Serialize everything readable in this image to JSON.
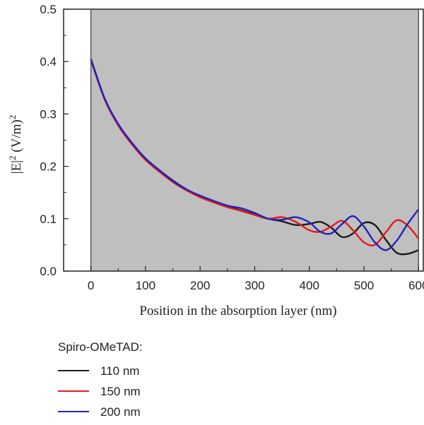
{
  "chart_data": {
    "type": "line",
    "ylabel_parts": {
      "base": "|E|",
      "sup1": "2",
      "unit": " (V/m)",
      "sup2": "2"
    },
    "xlabel": "Position in the absorption layer (nm)",
    "xlim": [
      -50,
      610
    ],
    "ylim": [
      0,
      0.5
    ],
    "x_ticks": [
      0,
      100,
      200,
      300,
      400,
      500,
      600
    ],
    "y_ticks": [
      0.0,
      0.1,
      0.2,
      0.3,
      0.4,
      0.5
    ],
    "y_tick_labels": [
      "0.0",
      "0.1",
      "0.2",
      "0.3",
      "0.4",
      "0.5"
    ],
    "shaded_region": [
      0,
      600
    ],
    "shade_color": "#c0bfc0",
    "legend_title": "Spiro-OMeTAD:",
    "legend_position": "below",
    "series": [
      {
        "name": "110 nm",
        "color": "#1a1a1a",
        "x": [
          0,
          25,
          50,
          75,
          100,
          125,
          150,
          175,
          200,
          225,
          250,
          275,
          300,
          325,
          350,
          375,
          400,
          420,
          440,
          460,
          480,
          500,
          520,
          540,
          560,
          580,
          600
        ],
        "y": [
          0.405,
          0.33,
          0.28,
          0.245,
          0.215,
          0.193,
          0.173,
          0.156,
          0.143,
          0.133,
          0.124,
          0.116,
          0.108,
          0.1,
          0.095,
          0.088,
          0.09,
          0.094,
          0.083,
          0.065,
          0.072,
          0.092,
          0.088,
          0.06,
          0.035,
          0.033,
          0.04
        ]
      },
      {
        "name": "150 nm",
        "color": "#e41a1c",
        "x": [
          0,
          25,
          50,
          75,
          100,
          125,
          150,
          175,
          200,
          225,
          250,
          275,
          300,
          325,
          350,
          375,
          400,
          420,
          440,
          460,
          480,
          500,
          520,
          540,
          560,
          580,
          600
        ],
        "y": [
          0.403,
          0.328,
          0.278,
          0.242,
          0.212,
          0.19,
          0.17,
          0.154,
          0.141,
          0.131,
          0.122,
          0.115,
          0.107,
          0.1,
          0.103,
          0.094,
          0.078,
          0.075,
          0.085,
          0.096,
          0.078,
          0.055,
          0.05,
          0.074,
          0.097,
          0.087,
          0.062
        ]
      },
      {
        "name": "200 nm",
        "color": "#2222bb",
        "x": [
          0,
          25,
          50,
          75,
          100,
          125,
          150,
          175,
          200,
          225,
          250,
          275,
          300,
          325,
          350,
          375,
          400,
          420,
          440,
          460,
          480,
          500,
          520,
          540,
          560,
          580,
          600
        ],
        "y": [
          0.405,
          0.33,
          0.281,
          0.245,
          0.215,
          0.193,
          0.172,
          0.156,
          0.144,
          0.134,
          0.125,
          0.12,
          0.111,
          0.1,
          0.098,
          0.103,
          0.093,
          0.075,
          0.072,
          0.09,
          0.105,
          0.085,
          0.055,
          0.04,
          0.058,
          0.09,
          0.118
        ]
      }
    ]
  }
}
